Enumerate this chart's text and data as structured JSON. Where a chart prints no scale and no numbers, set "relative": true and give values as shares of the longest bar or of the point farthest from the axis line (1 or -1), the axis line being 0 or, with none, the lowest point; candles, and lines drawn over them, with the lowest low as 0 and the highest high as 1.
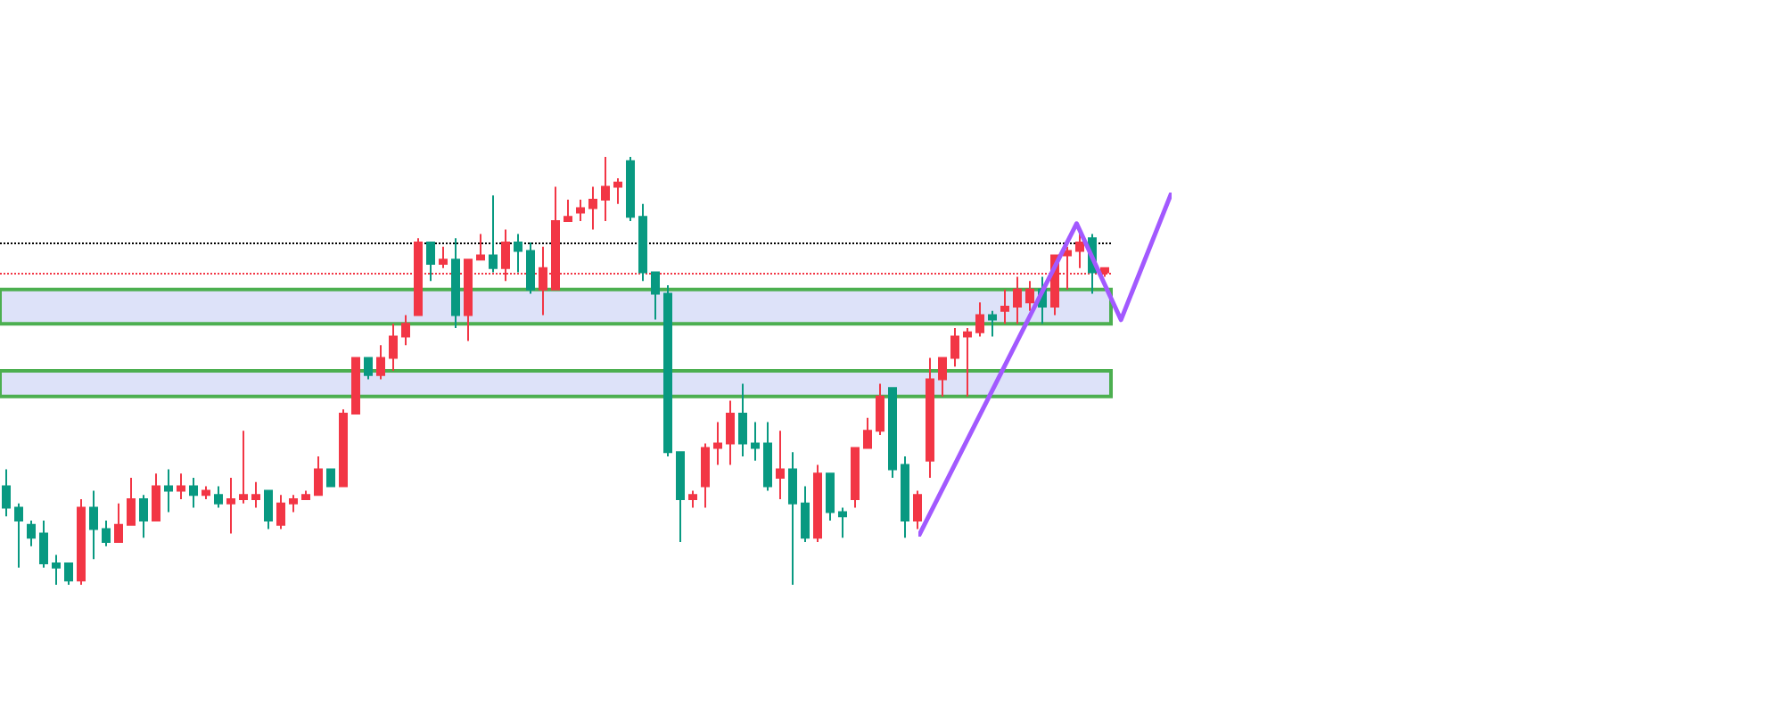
{
  "chart_data": [
    {
      "type": "candlestick",
      "relative": true,
      "colors": [
        "#089981",
        "#089981",
        "#089981",
        "#089981",
        "#089981",
        "#089981",
        "#f23645",
        "#089981",
        "#089981",
        "#f23645",
        "#f23645",
        "#089981",
        "#f23645",
        "#089981",
        "#f23645",
        "#089981",
        "#f23645",
        "#089981",
        "#f23645",
        "#f23645",
        "#f23645",
        "#089981",
        "#f23645",
        "#f23645",
        "#f23645",
        "#f23645",
        "#089981",
        "#f23645",
        "#f23645",
        "#089981",
        "#f23645",
        "#f23645",
        "#f23645",
        "#f23645",
        "#089981",
        "#f23645",
        "#089981",
        "#f23645",
        "#f23645",
        "#089981",
        "#f23645",
        "#089981",
        "#089981",
        "#f23645",
        "#f23645",
        "#f23645",
        "#f23645",
        "#f23645",
        "#f23645",
        "#f23645",
        "#089981",
        "#089981",
        "#089981",
        "#089981",
        "#089981",
        "#f23645",
        "#f23645",
        "#f23645",
        "#f23645",
        "#089981",
        "#089981",
        "#089981",
        "#f23645",
        "#089981",
        "#089981",
        "#f23645",
        "#089981",
        "#089981",
        "#f23645",
        "#f23645",
        "#f23645",
        "#089981",
        "#089981",
        "#f23645",
        "#f23645",
        "#f23645",
        "#f23645",
        "#f23645",
        "#f23645",
        "#089981",
        "#f23645",
        "#f23645",
        "#f23645",
        "#089981",
        "#f23645",
        "#f23645",
        "#f23645",
        "#089981",
        "#f23645"
      ],
      "categories": [
        null,
        null,
        null,
        null,
        null,
        null,
        null,
        null,
        null,
        null,
        null,
        null,
        null,
        null,
        null,
        null,
        null,
        null,
        null,
        null,
        null,
        null,
        null,
        null,
        null,
        null,
        null,
        null,
        null,
        null,
        null,
        null,
        null,
        null,
        null,
        null,
        null,
        null,
        null,
        null,
        null,
        null,
        null,
        null,
        null,
        null,
        null,
        null,
        null,
        null,
        null,
        null,
        null,
        null,
        null,
        null,
        null,
        null,
        null,
        null,
        null,
        null,
        null,
        null,
        null,
        null,
        null,
        null,
        null,
        null,
        null,
        null,
        null,
        null,
        null,
        null,
        null,
        null,
        null,
        null,
        null,
        null,
        null,
        null,
        null,
        null,
        null,
        null,
        null
      ],
      "ohlc": [
        [
          0.23,
          0.27,
          0.16,
          0.18
        ],
        [
          0.18,
          0.19,
          0.04,
          0.15
        ],
        [
          0.14,
          0.15,
          0.09,
          0.11
        ],
        [
          0.12,
          0.15,
          0.04,
          0.05
        ],
        [
          0.05,
          0.07,
          0.0,
          0.04
        ],
        [
          0.05,
          0.05,
          0.0,
          0.01
        ],
        [
          0.01,
          0.2,
          0.0,
          0.18
        ],
        [
          0.18,
          0.22,
          0.06,
          0.13
        ],
        [
          0.13,
          0.15,
          0.09,
          0.1
        ],
        [
          0.1,
          0.19,
          0.1,
          0.14
        ],
        [
          0.14,
          0.25,
          0.14,
          0.2
        ],
        [
          0.2,
          0.21,
          0.11,
          0.15
        ],
        [
          0.15,
          0.26,
          0.15,
          0.23
        ],
        [
          0.23,
          0.27,
          0.17,
          0.22
        ],
        [
          0.22,
          0.26,
          0.2,
          0.23
        ],
        [
          0.23,
          0.25,
          0.18,
          0.21
        ],
        [
          0.21,
          0.23,
          0.2,
          0.22
        ],
        [
          0.21,
          0.23,
          0.18,
          0.19
        ],
        [
          0.19,
          0.25,
          0.12,
          0.2
        ],
        [
          0.2,
          0.36,
          0.19,
          0.21
        ],
        [
          0.2,
          0.24,
          0.18,
          0.21
        ],
        [
          0.22,
          0.22,
          0.13,
          0.15
        ],
        [
          0.14,
          0.21,
          0.13,
          0.19
        ],
        [
          0.19,
          0.21,
          0.17,
          0.2
        ],
        [
          0.2,
          0.22,
          0.2,
          0.21
        ],
        [
          0.21,
          0.3,
          0.21,
          0.27
        ],
        [
          0.27,
          0.27,
          0.23,
          0.23
        ],
        [
          0.23,
          0.41,
          0.23,
          0.4
        ],
        [
          0.4,
          0.53,
          0.4,
          0.53
        ],
        [
          0.53,
          0.53,
          0.48,
          0.49
        ],
        [
          0.49,
          0.56,
          0.48,
          0.53
        ],
        [
          0.53,
          0.61,
          0.5,
          0.58
        ],
        [
          0.58,
          0.63,
          0.56,
          0.61
        ],
        [
          0.63,
          0.81,
          0.63,
          0.8
        ],
        [
          0.8,
          0.8,
          0.71,
          0.75
        ],
        [
          0.75,
          0.79,
          0.74,
          0.76
        ],
        [
          0.76,
          0.81,
          0.6,
          0.63
        ],
        [
          0.63,
          0.76,
          0.57,
          0.76
        ],
        [
          0.76,
          0.82,
          0.76,
          0.77
        ],
        [
          0.77,
          0.91,
          0.73,
          0.74
        ],
        [
          0.74,
          0.83,
          0.71,
          0.8
        ],
        [
          0.8,
          0.82,
          0.73,
          0.78
        ],
        [
          0.78,
          0.8,
          0.68,
          0.69
        ],
        [
          0.69,
          0.79,
          0.63,
          0.74
        ],
        [
          0.69,
          0.93,
          0.69,
          0.85
        ],
        [
          0.85,
          0.9,
          0.85,
          0.86
        ],
        [
          0.87,
          0.9,
          0.85,
          0.88
        ],
        [
          0.88,
          0.93,
          0.83,
          0.9
        ],
        [
          0.9,
          1.0,
          0.85,
          0.93
        ],
        [
          0.93,
          0.95,
          0.89,
          0.94
        ],
        [
          0.99,
          1.0,
          0.85,
          0.86
        ],
        [
          0.86,
          0.89,
          0.71,
          0.73
        ],
        [
          0.73,
          0.73,
          0.62,
          0.68
        ],
        [
          0.68,
          0.7,
          0.3,
          0.31
        ],
        [
          0.31,
          0.31,
          0.1,
          0.2
        ],
        [
          0.2,
          0.22,
          0.18,
          0.21
        ],
        [
          0.23,
          0.33,
          0.18,
          0.32
        ],
        [
          0.32,
          0.38,
          0.28,
          0.33
        ],
        [
          0.33,
          0.43,
          0.28,
          0.4
        ],
        [
          0.4,
          0.47,
          0.3,
          0.33
        ],
        [
          0.33,
          0.38,
          0.29,
          0.32
        ],
        [
          0.33,
          0.38,
          0.22,
          0.23
        ],
        [
          0.25,
          0.36,
          0.2,
          0.27
        ],
        [
          0.27,
          0.31,
          0.0,
          0.19
        ],
        [
          0.19,
          0.23,
          0.1,
          0.11
        ],
        [
          0.11,
          0.28,
          0.1,
          0.26
        ],
        [
          0.26,
          0.26,
          0.15,
          0.17
        ],
        [
          0.17,
          0.18,
          0.11,
          0.16
        ],
        [
          0.2,
          0.32,
          0.18,
          0.32
        ],
        [
          0.32,
          0.39,
          0.32,
          0.36
        ],
        [
          0.36,
          0.47,
          0.35,
          0.44
        ],
        [
          0.46,
          0.46,
          0.25,
          0.27
        ],
        [
          0.28,
          0.3,
          0.11,
          0.15
        ],
        [
          0.15,
          0.22,
          0.13,
          0.21
        ],
        [
          0.29,
          0.53,
          0.25,
          0.48
        ],
        [
          0.48,
          0.53,
          0.44,
          0.53
        ],
        [
          0.53,
          0.6,
          0.51,
          0.58
        ],
        [
          0.58,
          0.6,
          0.44,
          0.59
        ],
        [
          0.59,
          0.66,
          0.58,
          0.63
        ],
        [
          0.63,
          0.64,
          0.58,
          0.62
        ],
        [
          0.64,
          0.69,
          0.61,
          0.65
        ],
        [
          0.65,
          0.72,
          0.61,
          0.69
        ],
        [
          0.66,
          0.71,
          0.64,
          0.69
        ],
        [
          0.69,
          0.72,
          0.61,
          0.65
        ],
        [
          0.65,
          0.77,
          0.63,
          0.77
        ],
        [
          0.77,
          0.79,
          0.69,
          0.78
        ],
        [
          0.78,
          0.83,
          0.74,
          0.8
        ],
        [
          0.81,
          0.82,
          0.68,
          0.73
        ],
        [
          0.73,
          0.74,
          0.72,
          0.74
        ]
      ],
      "ref_lines": [
        {
          "axis": "y",
          "value": 0.8,
          "color": "#000000",
          "line_style": "dotted"
        },
        {
          "axis": "y",
          "value": 0.73,
          "color": "#f23645",
          "line_style": "dotted"
        }
      ],
      "bands": [
        {
          "axis": "y",
          "from": 0.61,
          "to": 0.69,
          "color": "#4caf50"
        },
        {
          "axis": "y",
          "from": 0.44,
          "to": 0.5,
          "color": "#4caf50"
        }
      ]
    },
    {
      "type": "line",
      "relative": true,
      "categories": [
        null,
        null,
        null,
        null,
        null,
        null,
        null,
        null,
        null,
        null,
        null,
        null,
        null,
        null,
        null,
        null,
        null,
        null,
        null,
        null,
        null,
        null,
        null,
        null,
        null,
        null,
        null,
        null,
        null,
        null,
        null,
        null,
        null,
        null,
        null,
        null,
        null,
        null,
        null,
        null,
        null
      ],
      "series": [
        {
          "color": "#a259ff",
          "values": [
            0,
            null,
            null,
            null,
            null,
            null,
            null,
            null,
            null,
            null,
            null,
            null,
            null,
            null,
            null,
            null,
            null,
            null,
            null,
            null,
            null,
            null,
            null,
            null,
            null,
            0.91,
            null,
            null,
            null,
            null,
            null,
            null,
            0.63,
            null,
            null,
            null,
            null,
            null,
            null,
            null,
            1
          ]
        }
      ]
    }
  ]
}
